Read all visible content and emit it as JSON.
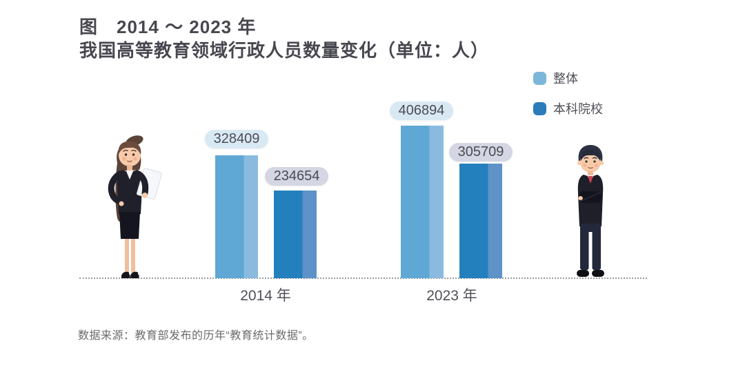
{
  "title": {
    "line1": "图　2014 ～ 2023 年",
    "line2": "我国高等教育领域行政人员数量变化（单位：人）"
  },
  "legend": {
    "items": [
      {
        "label": "整体",
        "color": "#7cb7d9"
      },
      {
        "label": "本科院校",
        "color": "#2b7cba"
      }
    ]
  },
  "chart_data": {
    "type": "bar",
    "title": "2014 ～ 2023 年我国高等教育领域行政人员数量变化",
    "unit": "人",
    "categories": [
      "2014 年",
      "2023 年"
    ],
    "series": [
      {
        "name": "整体",
        "color": "#5fa8d5",
        "values": [
          328409,
          406894
        ]
      },
      {
        "name": "本科院校",
        "color": "#2380bd",
        "values": [
          234654,
          305709
        ]
      }
    ],
    "value_labels_visible": true,
    "legend_position": "top-right",
    "baseline_style": "dotted",
    "grid": "off"
  },
  "source_note": "数据来源：教育部发布的历年“教育统计数据”。",
  "colors": {
    "title_text": "#47474f",
    "body_text": "#4f4f57",
    "source_text": "#6b6b6b",
    "bar_overall_main": "#5fa8d5",
    "bar_overall_edge": "#8abbde",
    "bar_undergrad_main": "#2380bd",
    "bar_undergrad_edge": "#5e92c8",
    "pill_overall_bg": "#d9e9f4",
    "pill_undergrad_bg": "#d5d6e3",
    "baseline": "#9b9b9b"
  },
  "icons": [
    {
      "name": "businesswoman-illustration"
    },
    {
      "name": "businessman-illustration"
    }
  ]
}
